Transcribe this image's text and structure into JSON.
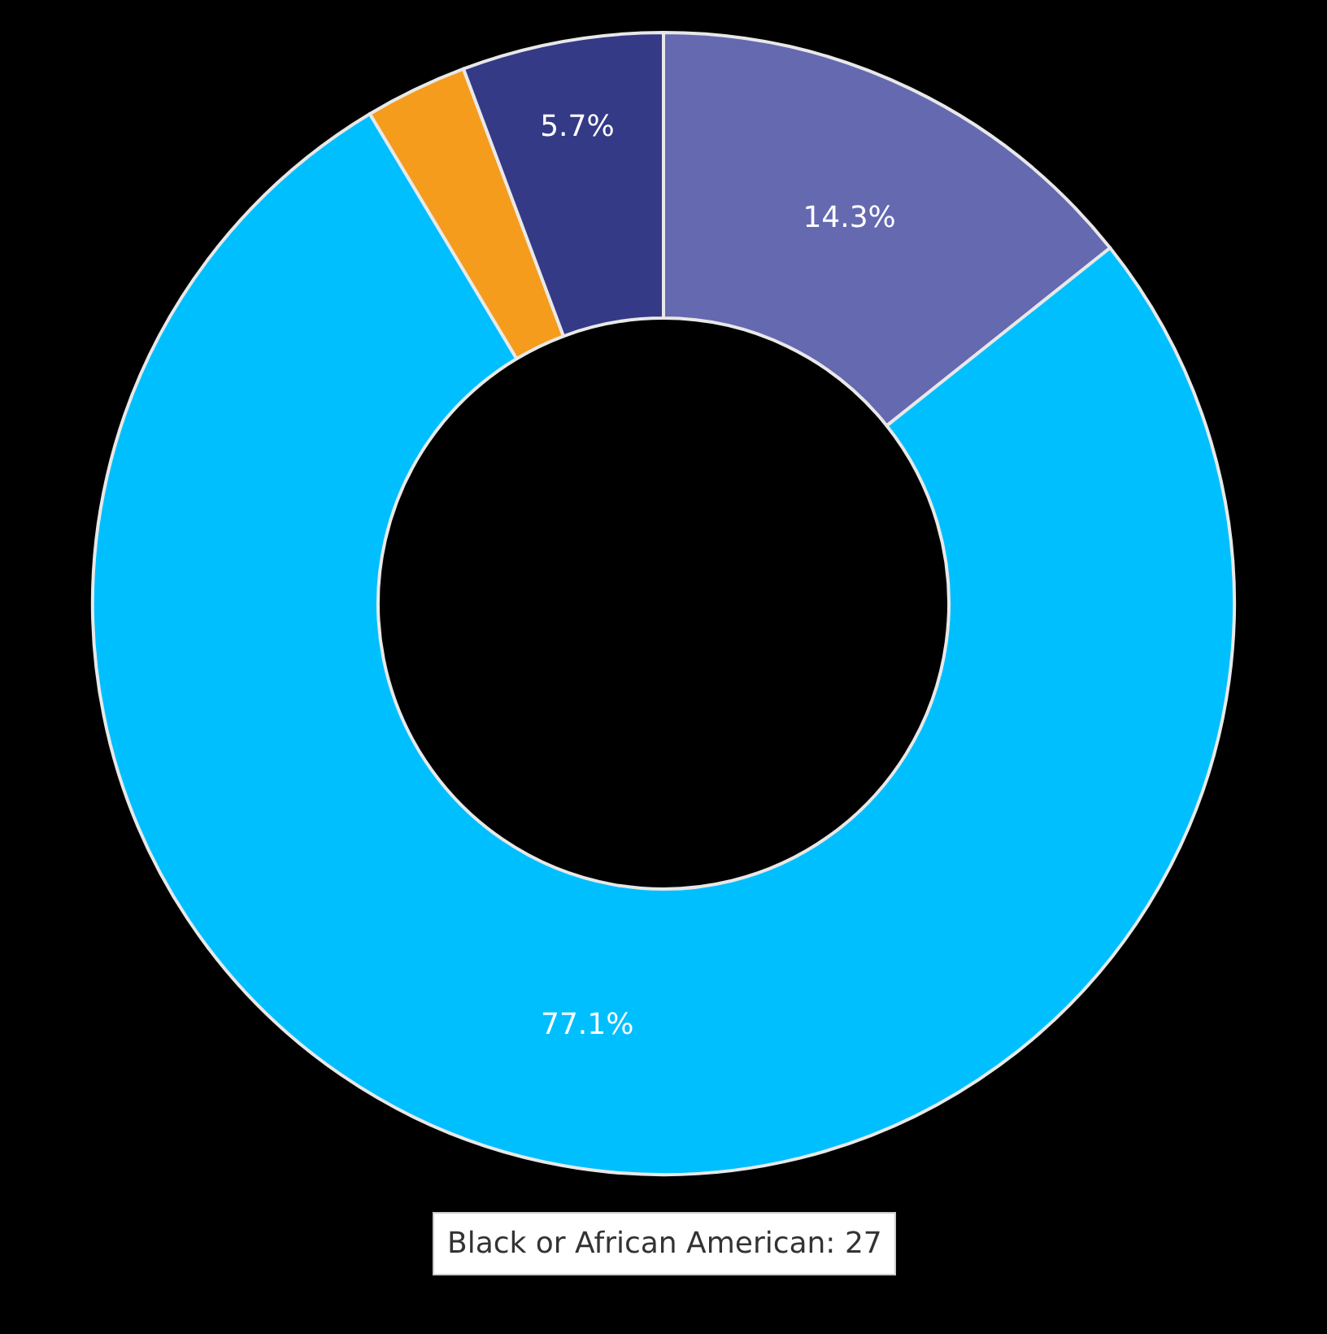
{
  "chart_data": {
    "type": "donut",
    "categories": [
      null,
      null,
      null,
      null
    ],
    "values": [
      14.3,
      77.1,
      2.9,
      5.7
    ],
    "colors": [
      "#6569b0",
      "#00bfff",
      "#f59c1d",
      "#343a86"
    ],
    "value_labels": [
      "14.3%",
      "77.1%",
      null,
      "5.7%"
    ],
    "annotations": [
      "Black or African American: 27"
    ],
    "legend": false
  }
}
